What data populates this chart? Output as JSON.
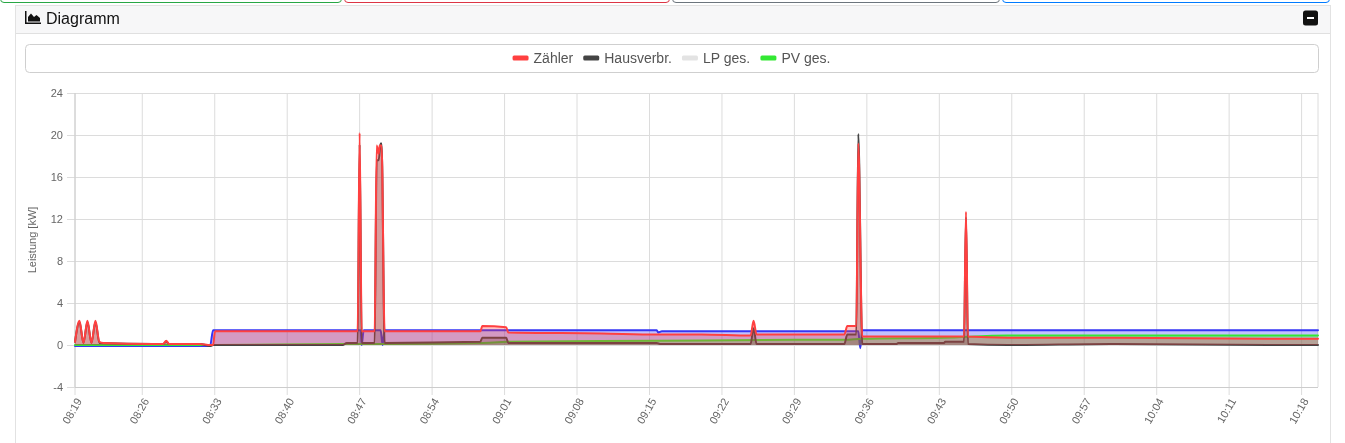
{
  "chart_data": {
    "type": "area",
    "title": "Diagramm",
    "ylabel": "Leistung [kW]",
    "xlim": [
      8.325,
      10.3264
    ],
    "ylim": [
      -4,
      24
    ],
    "xticks": [
      {
        "value": 8.325,
        "label": "08:19"
      },
      {
        "value": 8.4333,
        "label": "08:26"
      },
      {
        "value": 8.55,
        "label": "08:33"
      },
      {
        "value": 8.6667,
        "label": "08:40"
      },
      {
        "value": 8.7833,
        "label": "08:47"
      },
      {
        "value": 8.9,
        "label": "08:54"
      },
      {
        "value": 9.0167,
        "label": "09:01"
      },
      {
        "value": 9.1333,
        "label": "09:08"
      },
      {
        "value": 9.25,
        "label": "09:15"
      },
      {
        "value": 9.3667,
        "label": "09:22"
      },
      {
        "value": 9.4833,
        "label": "09:29"
      },
      {
        "value": 9.6,
        "label": "09:36"
      },
      {
        "value": 9.7167,
        "label": "09:43"
      },
      {
        "value": 9.8333,
        "label": "09:50"
      },
      {
        "value": 9.95,
        "label": "09:57"
      },
      {
        "value": 10.0667,
        "label": "10:04"
      },
      {
        "value": 10.1833,
        "label": "10:11"
      },
      {
        "value": 10.3,
        "label": "10:18"
      }
    ],
    "yticks": [
      -4,
      0,
      4,
      8,
      12,
      16,
      20,
      24
    ],
    "grid": true,
    "legend": "top",
    "series": [
      {
        "name": "Zähler",
        "color": "#ff4040",
        "x": [
          8.325,
          8.3322,
          8.3386,
          8.345,
          8.3515,
          8.3579,
          8.3643,
          8.3707,
          8.451,
          8.467,
          8.4718,
          8.4767,
          8.4831,
          8.5265,
          8.5425,
          8.5473,
          8.5505,
          8.7801,
          8.7833,
          8.7866,
          8.8075,
          8.8107,
          8.8139,
          8.8155,
          8.8187,
          8.8235,
          8.9776,
          8.9808,
          9.0193,
          9.0226,
          9.1735,
          9.2618,
          9.3341,
          9.4128,
          9.4176,
          9.4224,
          9.4946,
          9.5637,
          9.5685,
          9.583,
          9.5862,
          9.5926,
          9.6504,
          9.7243,
          9.7564,
          9.7596,
          9.7628,
          9.827,
          9.9925,
          10.2542,
          10.3264
        ],
        "values": [
          0.3,
          2.3,
          0.2,
          2.3,
          0.2,
          2.3,
          0.3,
          0.2,
          0.1,
          0.1,
          0.4,
          0.1,
          0.1,
          0.1,
          0.0,
          0.0,
          1.3,
          1.3,
          20.2,
          1.3,
          1.3,
          19.0,
          18.2,
          19.0,
          19.0,
          1.3,
          1.3,
          1.8,
          1.7,
          1.2,
          1.1,
          1.0,
          1.0,
          0.9,
          2.3,
          1.0,
          1.0,
          1.0,
          1.8,
          1.8,
          19.2,
          0.8,
          0.8,
          0.8,
          0.8,
          12.7,
          0.8,
          0.7,
          0.7,
          0.6,
          0.6
        ]
      },
      {
        "name": "Hausverbr.",
        "color": "#444444",
        "x": [
          8.325,
          8.3322,
          8.3386,
          8.345,
          8.3515,
          8.3579,
          8.3643,
          8.451,
          8.467,
          8.4718,
          8.4767,
          8.5265,
          8.5425,
          8.5473,
          8.756,
          8.7625,
          8.7801,
          8.7833,
          8.7866,
          8.8075,
          8.8107,
          8.8139,
          8.8171,
          8.8187,
          8.8235,
          8.9776,
          8.9808,
          9.0193,
          9.0226,
          9.2618,
          9.2666,
          9.4128,
          9.4176,
          9.4224,
          9.5637,
          9.5685,
          9.583,
          9.5862,
          9.5926,
          9.648,
          9.6504,
          9.7243,
          9.726,
          9.7564,
          9.7596,
          9.7628,
          9.827,
          9.9925,
          10.2542,
          10.3264
        ],
        "values": [
          0.3,
          2.2,
          0.2,
          2.2,
          0.2,
          2.2,
          0.2,
          0.1,
          0.1,
          0.3,
          0.1,
          0.1,
          -0.1,
          0.0,
          0.0,
          0.2,
          0.2,
          19.1,
          0.2,
          0.2,
          17.6,
          17.6,
          19.2,
          19.2,
          0.2,
          0.3,
          0.7,
          0.7,
          0.2,
          0.2,
          0.1,
          0.1,
          1.6,
          0.1,
          0.1,
          1.0,
          1.0,
          20.1,
          0.1,
          0.1,
          0.2,
          0.2,
          0.3,
          0.3,
          12.2,
          0.1,
          0.0,
          0.1,
          0.0,
          0.0
        ]
      },
      {
        "name": "LP ges.",
        "color": "#e3e3e3"
      },
      {
        "name": "PV ges.",
        "color": "#33e833",
        "x": [
          8.325,
          8.5473,
          8.756,
          8.8235,
          8.9776,
          9.0226,
          9.2618,
          9.4946,
          9.5637,
          9.5926,
          9.7243,
          9.827,
          10.0,
          10.2542,
          10.3264
        ],
        "values": [
          0.0,
          0.0,
          0.1,
          0.1,
          0.2,
          0.3,
          0.4,
          0.5,
          0.5,
          0.6,
          0.7,
          0.9,
          0.9,
          0.9,
          0.9
        ]
      },
      {
        "color": "#3535f5",
        "x": [
          8.325,
          8.5425,
          8.5473,
          8.7849,
          8.7866,
          8.7898,
          8.8171,
          8.8203,
          8.8235,
          9.2618,
          9.264,
          9.27,
          9.5862,
          9.5894,
          9.5926,
          10.3264
        ],
        "values": [
          -0.1,
          -0.1,
          1.4,
          1.4,
          0.0,
          1.4,
          1.4,
          0.0,
          1.4,
          1.4,
          1.2,
          1.3,
          1.3,
          -0.3,
          1.4,
          1.4
        ]
      }
    ]
  }
}
